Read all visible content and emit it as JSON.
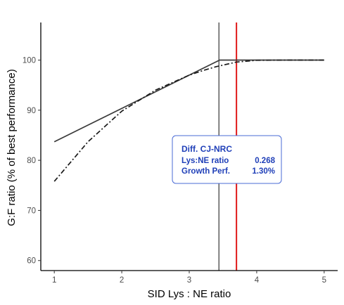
{
  "chart_data": {
    "type": "line",
    "title": "",
    "xlabel": "SID Lys : NE ratio",
    "ylabel": "G:F ratio (% of best performance)",
    "xlim": [
      0.8,
      5.2
    ],
    "ylim": [
      58.0,
      107.5
    ],
    "xticks": [
      1,
      2,
      3,
      4,
      5
    ],
    "yticks": [
      60,
      70,
      80,
      90,
      100
    ],
    "grid": false,
    "series": [
      {
        "style": "solid",
        "color": "#3a3a3a",
        "x": [
          1.0,
          3.45,
          3.6,
          4.0,
          5.0
        ],
        "y": [
          83.7,
          100.0,
          100.0,
          100.0,
          100.0
        ]
      },
      {
        "style": "dashdot",
        "color": "#1a1a1a",
        "x": [
          1.0,
          1.5,
          2.0,
          2.5,
          3.0,
          3.2,
          3.4,
          3.6,
          3.7,
          4.0,
          4.5,
          5.0
        ],
        "y": [
          75.8,
          83.7,
          89.8,
          94.0,
          97.0,
          97.9,
          98.7,
          99.3,
          99.6,
          99.95,
          100.0,
          100.0
        ]
      }
    ],
    "vlines": [
      {
        "x": 3.44,
        "color": "#333333"
      },
      {
        "x": 3.7,
        "color": "#e01818"
      }
    ],
    "annotation": {
      "title": "Diff. CJ-NRC",
      "rows": [
        {
          "label": "Lys:NE ratio",
          "value": "0.268"
        },
        {
          "label": "Growth Perf.",
          "value": "1.30%"
        }
      ],
      "border_color": "#4a6bd6",
      "text_color": "#1f3fb8"
    }
  }
}
